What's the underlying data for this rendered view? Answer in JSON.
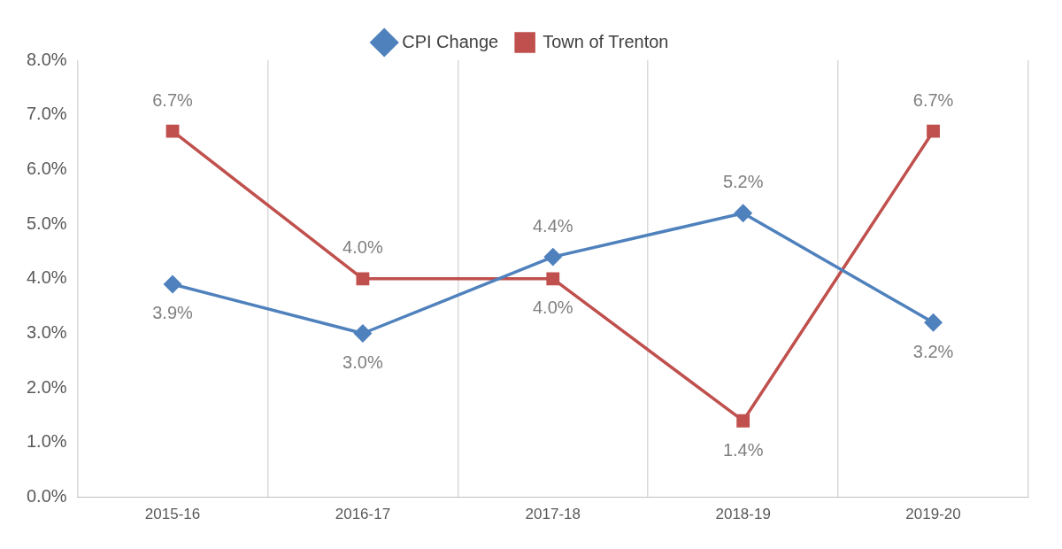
{
  "chart_data": {
    "type": "line",
    "categories": [
      "2015-16",
      "2016-17",
      "2017-18",
      "2018-19",
      "2019-20"
    ],
    "series": [
      {
        "name": "CPI Change",
        "color": "#4f81bd",
        "marker": "diamond",
        "values": [
          3.9,
          3.0,
          4.4,
          5.2,
          3.2
        ],
        "value_labels": [
          "3.9%",
          "3.0%",
          "4.4%",
          "5.2%",
          "3.2%"
        ]
      },
      {
        "name": "Town of Trenton",
        "color": "#c0504d",
        "marker": "square",
        "values": [
          6.7,
          4.0,
          4.0,
          1.4,
          6.7
        ],
        "value_labels": [
          "6.7%",
          "4.0%",
          "4.0%",
          "1.4%",
          "6.7%"
        ]
      }
    ],
    "ylim": [
      0,
      8
    ],
    "yticks": [
      {
        "value": 0,
        "label": "0.0%"
      },
      {
        "value": 1,
        "label": "1.0%"
      },
      {
        "value": 2,
        "label": "2.0%"
      },
      {
        "value": 3,
        "label": "3.0%"
      },
      {
        "value": 4,
        "label": "4.0%"
      },
      {
        "value": 5,
        "label": "5.0%"
      },
      {
        "value": 6,
        "label": "6.0%"
      },
      {
        "value": 7,
        "label": "7.0%"
      },
      {
        "value": 8,
        "label": "8.0%"
      }
    ],
    "grid": "x",
    "legend": "top",
    "line_style": "solid"
  }
}
